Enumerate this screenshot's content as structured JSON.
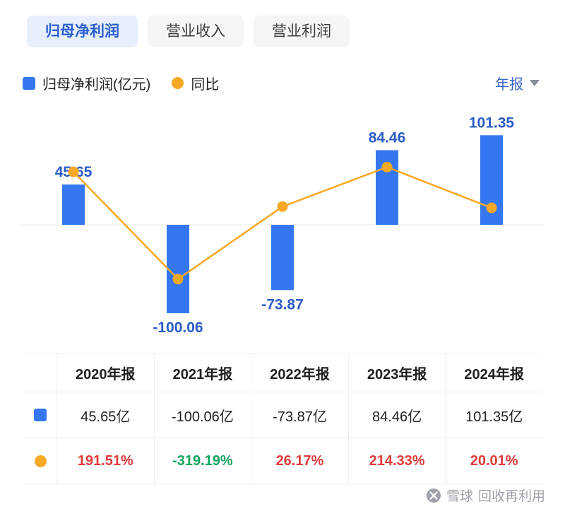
{
  "tabs": [
    {
      "label": "归母净利润",
      "active": true
    },
    {
      "label": "营业收入",
      "active": false
    },
    {
      "label": "营业利润",
      "active": false
    }
  ],
  "legend": {
    "bar_label": "归母净利润(亿元)",
    "line_label": "同比",
    "period_label": "年报"
  },
  "colors": {
    "bar": "#3577F1",
    "line": "#F7A825",
    "value_label": "#2B5CC7",
    "up": "#E03C3C",
    "down": "#13A45B"
  },
  "chart_data": {
    "type": "bar+line",
    "categories": [
      "2020年报",
      "2021年报",
      "2022年报",
      "2023年报",
      "2024年报"
    ],
    "series": [
      {
        "name": "归母净利润(亿元)",
        "type": "bar",
        "unit": "亿元",
        "values": [
          45.65,
          -100.06,
          -73.87,
          84.46,
          101.35
        ]
      },
      {
        "name": "同比",
        "type": "line",
        "unit": "%",
        "values": [
          191.51,
          -319.19,
          26.17,
          214.33,
          20.01
        ]
      }
    ],
    "bar_labels": [
      "45.65",
      "-100.06",
      "-73.87",
      "84.46",
      "101.35"
    ],
    "legend_position": "top-left",
    "grid": false
  },
  "table": {
    "headers": [
      "2020年报",
      "2021年报",
      "2022年报",
      "2023年报",
      "2024年报"
    ],
    "profit_row": [
      "45.65亿",
      "-100.06亿",
      "-73.87亿",
      "84.46亿",
      "101.35亿"
    ],
    "yoy_row": [
      {
        "text": "191.51%",
        "trend": "up"
      },
      {
        "text": "-319.19%",
        "trend": "down"
      },
      {
        "text": "26.17%",
        "trend": "up"
      },
      {
        "text": "214.33%",
        "trend": "up"
      },
      {
        "text": "20.01%",
        "trend": "up"
      }
    ]
  },
  "watermark": {
    "brand": "雪球",
    "suffix": "回收再利用"
  }
}
